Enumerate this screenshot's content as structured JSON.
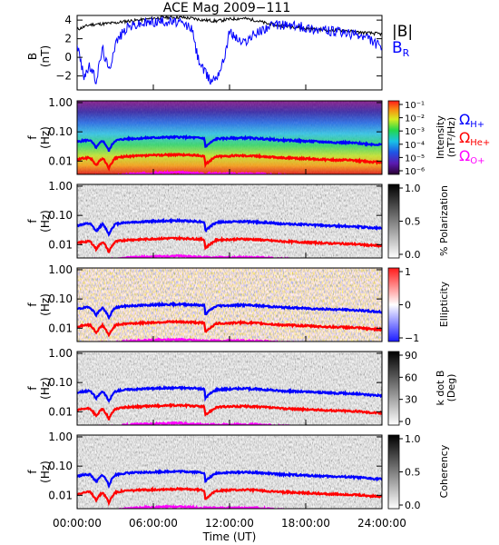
{
  "chart_data": {
    "type": "spectrogram",
    "title": "ACE Mag 2009−111",
    "xlabel": "Time (UT)",
    "x_ticks": [
      "00:00:00",
      "06:00:00",
      "12:00:00",
      "18:00:00",
      "24:00:00"
    ],
    "x_hours": [
      0,
      6,
      12,
      18,
      24
    ],
    "xlim_hours": [
      0,
      24
    ],
    "top_panel": {
      "ylabel_line1": "B",
      "ylabel_line2": "(nT)",
      "ylim": [
        -3.5,
        4.5
      ],
      "y_ticks": [
        4,
        2,
        0,
        -2
      ],
      "y_tick_labels": [
        "4",
        "2",
        "0",
        "−2"
      ],
      "series": [
        {
          "name": "|B|",
          "color": "#000000",
          "hours": [
            0,
            1,
            2,
            3,
            4,
            5,
            6,
            7,
            8,
            9,
            10,
            11,
            12,
            13,
            14,
            15,
            16,
            17,
            18,
            19,
            20,
            21,
            22,
            23,
            24
          ],
          "values": [
            3.0,
            3.5,
            3.6,
            3.7,
            3.9,
            4.0,
            4.2,
            4.3,
            4.3,
            4.2,
            4.0,
            3.9,
            4.1,
            4.2,
            4.0,
            3.6,
            3.4,
            3.3,
            3.1,
            3.0,
            2.9,
            2.9,
            2.7,
            2.6,
            2.5
          ]
        },
        {
          "name": "B",
          "subscript": "R",
          "color": "#0000ff",
          "hours": [
            0,
            0.5,
            1,
            1.5,
            2,
            2.5,
            3,
            3.5,
            4,
            5,
            6,
            7,
            8,
            9,
            9.5,
            10,
            10.5,
            11,
            11.5,
            12,
            13,
            14,
            15,
            16,
            17,
            18,
            19,
            20,
            21,
            22,
            23,
            24
          ],
          "values": [
            1.5,
            -2.0,
            -1.0,
            -2.5,
            1.0,
            -1.5,
            1.5,
            2.5,
            3.3,
            3.6,
            3.8,
            3.9,
            3.7,
            3.2,
            0.0,
            -1.5,
            -2.5,
            -2.0,
            -0.5,
            2.8,
            1.5,
            2.5,
            3.3,
            3.5,
            3.4,
            3.2,
            3.0,
            2.8,
            2.6,
            2.4,
            2.0,
            1.0
          ]
        }
      ]
    },
    "panels": [
      {
        "ylabel_line1": "f",
        "ylabel_line2": "(Hz)",
        "colorbar_label": "Intensity",
        "colorbar_label_2": "(nT²/Hz)",
        "colorbar_ticks": [
          "10⁻¹",
          "10⁻²",
          "10⁻³",
          "10⁻⁴",
          "10⁻⁵",
          "10⁻⁶"
        ],
        "colormap": "rainbow"
      },
      {
        "ylabel_line1": "f",
        "ylabel_line2": "(Hz)",
        "colorbar_label": "% Polarization",
        "colorbar_label_2": "",
        "colorbar_ticks": [
          "1.0",
          "0.5",
          "0.0"
        ],
        "colormap": "gray"
      },
      {
        "ylabel_line1": "f",
        "ylabel_line2": "(Hz)",
        "colorbar_label": "Ellipticity",
        "colorbar_label_2": "",
        "colorbar_ticks": [
          "1",
          "0",
          "−1"
        ],
        "colormap": "bwr"
      },
      {
        "ylabel_line1": "f",
        "ylabel_line2": "(Hz)",
        "colorbar_label": "k dot B",
        "colorbar_label_2": "(Deg)",
        "colorbar_ticks": [
          "90",
          "60",
          "30",
          "0"
        ],
        "colormap": "gray"
      },
      {
        "ylabel_line1": "f",
        "ylabel_line2": "(Hz)",
        "colorbar_label": "Coherency",
        "colorbar_label_2": "",
        "colorbar_ticks": [
          "1.0",
          "0.5",
          "0.0"
        ],
        "colormap": "gray"
      }
    ],
    "freq_ticks": [
      "1.00",
      "0.10",
      "0.01"
    ],
    "freq_tick_values": [
      1.0,
      0.1,
      0.01
    ],
    "ylim_hz": [
      0.0035,
      1.15
    ],
    "gyro_lines": [
      {
        "name": "Ω",
        "subscript": "H+",
        "color": "#0000ff",
        "hours": [
          0,
          0.5,
          1,
          1.5,
          2,
          2.5,
          3,
          3.5,
          4,
          5,
          6,
          7,
          8,
          9,
          10,
          10.1,
          11,
          12,
          13,
          14,
          15,
          16,
          17,
          18,
          19,
          20,
          21,
          22,
          23,
          24
        ],
        "hz": [
          0.045,
          0.05,
          0.052,
          0.028,
          0.05,
          0.022,
          0.05,
          0.055,
          0.058,
          0.06,
          0.063,
          0.065,
          0.066,
          0.064,
          0.06,
          0.03,
          0.058,
          0.06,
          0.062,
          0.06,
          0.056,
          0.052,
          0.05,
          0.048,
          0.046,
          0.044,
          0.043,
          0.041,
          0.038,
          0.036
        ]
      },
      {
        "name": "Ω",
        "subscript": "He+",
        "color": "#ff0000",
        "hours": [
          0,
          0.5,
          1,
          1.5,
          2,
          2.5,
          3,
          3.5,
          4,
          5,
          6,
          7,
          8,
          9,
          10,
          10.1,
          11,
          12,
          13,
          14,
          15,
          16,
          17,
          18,
          19,
          20,
          21,
          22,
          23,
          24
        ],
        "hz": [
          0.011,
          0.0125,
          0.013,
          0.007,
          0.0125,
          0.0055,
          0.0125,
          0.0138,
          0.0145,
          0.015,
          0.0158,
          0.0163,
          0.0165,
          0.016,
          0.015,
          0.0075,
          0.0145,
          0.015,
          0.0155,
          0.015,
          0.014,
          0.013,
          0.0125,
          0.012,
          0.0115,
          0.011,
          0.0108,
          0.0103,
          0.0095,
          0.009
        ]
      },
      {
        "name": "Ω",
        "subscript": "O+",
        "color": "#ff00ff",
        "hours": [
          0,
          1,
          2,
          3,
          4,
          6,
          8,
          10,
          12,
          14,
          16,
          18,
          20,
          22,
          24
        ],
        "hz": [
          0.0028,
          0.0031,
          0.0031,
          0.0031,
          0.0036,
          0.0039,
          0.0041,
          0.0037,
          0.0037,
          0.0037,
          0.0033,
          0.003,
          0.0028,
          0.0026,
          0.0023
        ]
      }
    ]
  }
}
